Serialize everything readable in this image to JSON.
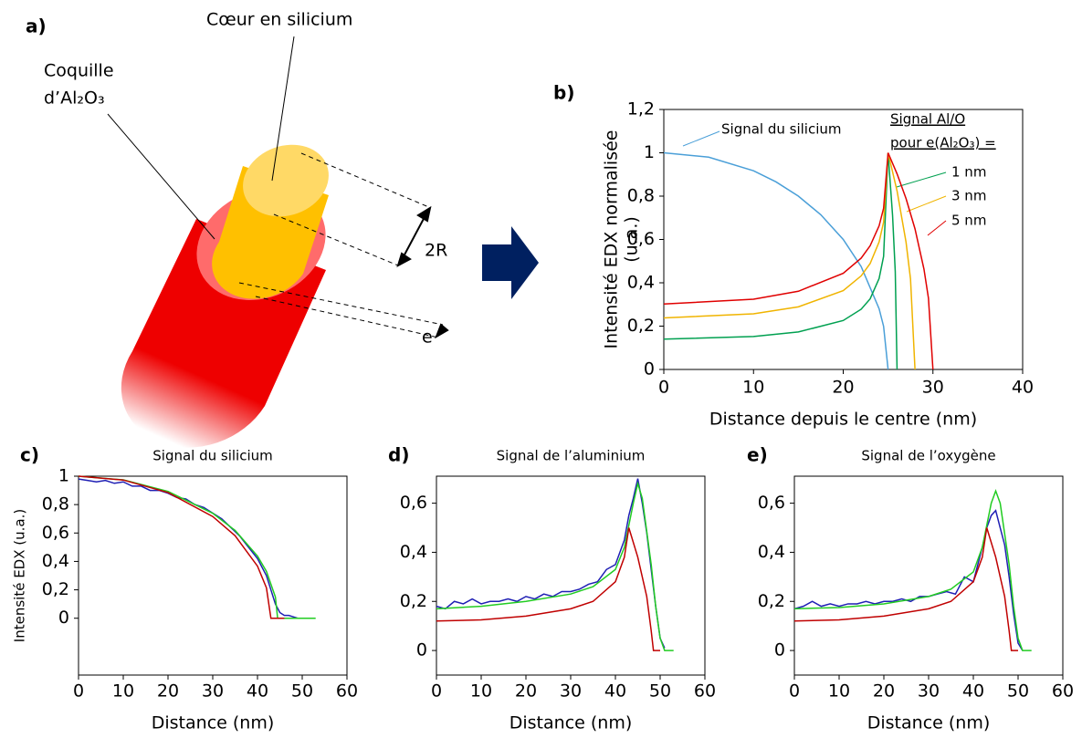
{
  "diagram": {
    "panel_label": "a)",
    "core_label": "Cœur en silicium",
    "shell_label": [
      "Coquille",
      "d’Al₂O₃"
    ],
    "diameter_label": "2R",
    "thickness_label": "e"
  },
  "chart_data": [
    {
      "type": "line",
      "panel_label": "b)",
      "xlabel": "Distance depuis le centre (nm)",
      "ylabel": [
        "Intensité EDX normalisée",
        "(u.a.)"
      ],
      "legend_title": [
        "Signal Al/O",
        "pour e(Al₂O₃) ="
      ],
      "xlim": [
        0,
        40
      ],
      "ylim": [
        0,
        1.2
      ],
      "xticks": [
        0,
        10,
        20,
        30,
        40
      ],
      "yticks": [
        0,
        {
          "value": 0.2,
          "label": "0,2"
        },
        {
          "value": 0.4,
          "label": "0,4"
        },
        {
          "value": 0.6,
          "label": "0,6"
        },
        {
          "value": 0.8,
          "label": "0,8"
        },
        1,
        {
          "value": 1.2,
          "label": "1,2"
        }
      ],
      "series": [
        {
          "name": "Signal du silicium",
          "color": "#4a9fd8",
          "x": [
            0,
            5,
            10,
            12.5,
            15,
            17.5,
            20,
            22,
            24,
            24.5,
            25
          ],
          "values": [
            1,
            0.98,
            0.917,
            0.866,
            0.8,
            0.714,
            0.6,
            0.475,
            0.28,
            0.199,
            0
          ]
        },
        {
          "name": "1 nm",
          "color": "#00a050",
          "x": [
            0,
            10,
            15,
            20,
            22,
            23,
            24,
            24.5,
            25,
            25.5,
            25.8,
            26
          ],
          "values": [
            0.14,
            0.152,
            0.173,
            0.226,
            0.278,
            0.326,
            0.42,
            0.522,
            1,
            0.711,
            0.451,
            0
          ]
        },
        {
          "name": "3 nm",
          "color": "#f0b400",
          "x": [
            0,
            10,
            15,
            20,
            22,
            23,
            24,
            24.5,
            25,
            26,
            27,
            27.5,
            28
          ],
          "values": [
            0.238,
            0.257,
            0.289,
            0.364,
            0.432,
            0.489,
            0.589,
            0.68,
            1,
            0.824,
            0.588,
            0.418,
            0
          ]
        },
        {
          "name": "5 nm",
          "color": "#e00000",
          "x": [
            0,
            10,
            15,
            20,
            22,
            23,
            24,
            24.5,
            25,
            26,
            27,
            28,
            29,
            29.5,
            30
          ],
          "values": [
            0.302,
            0.324,
            0.361,
            0.444,
            0.514,
            0.571,
            0.663,
            0.744,
            1,
            0.903,
            0.789,
            0.649,
            0.463,
            0.329,
            0
          ]
        }
      ]
    },
    {
      "type": "line",
      "panel_label": "c)",
      "title": "Signal du silicium",
      "xlabel": "Distance (nm)",
      "ylabel": "Intensité EDX (u.a.)",
      "xlim": [
        0,
        60
      ],
      "ylim": [
        -0.4,
        1
      ],
      "xticks": [
        0,
        10,
        20,
        30,
        40,
        50,
        60
      ],
      "yticks": [
        0,
        {
          "value": 0.2,
          "label": "0,2"
        },
        {
          "value": 0.4,
          "label": "0,4"
        },
        {
          "value": 0.6,
          "label": "0,6"
        },
        {
          "value": 0.8,
          "label": "0,8"
        },
        1
      ],
      "series": [
        {
          "color": "#1f1fb4",
          "x": [
            0,
            2,
            4,
            6,
            8,
            10,
            12,
            14,
            16,
            18,
            20,
            22,
            24,
            26,
            28,
            30,
            32,
            34,
            36,
            38,
            40,
            42,
            43,
            44,
            45,
            46,
            47,
            48,
            49
          ],
          "values": [
            0.98,
            0.97,
            0.96,
            0.97,
            0.95,
            0.96,
            0.93,
            0.93,
            0.9,
            0.9,
            0.88,
            0.85,
            0.84,
            0.8,
            0.78,
            0.74,
            0.7,
            0.64,
            0.58,
            0.5,
            0.42,
            0.3,
            0.2,
            0.1,
            0.04,
            0.02,
            0.02,
            0.01,
            0
          ]
        },
        {
          "color": "#22cc22",
          "x": [
            0,
            10,
            20,
            30,
            35,
            40,
            42,
            44,
            44.5,
            53
          ],
          "values": [
            1,
            0.974,
            0.893,
            0.739,
            0.618,
            0.438,
            0.33,
            0.15,
            0,
            0
          ]
        },
        {
          "color": "#c00000",
          "x": [
            0,
            10,
            20,
            30,
            35,
            40,
            42,
            43,
            46
          ],
          "values": [
            1,
            0.973,
            0.885,
            0.716,
            0.581,
            0.367,
            0.214,
            0,
            0
          ]
        }
      ]
    },
    {
      "type": "line",
      "panel_label": "d)",
      "title": "Signal de l’aluminium",
      "xlabel": "Distance (nm)",
      "xlim": [
        0,
        60
      ],
      "ylim": [
        -0.1,
        0.71
      ],
      "xticks": [
        0,
        10,
        20,
        30,
        40,
        50,
        60
      ],
      "yticks": [
        0,
        {
          "value": 0.2,
          "label": "0,2"
        },
        {
          "value": 0.4,
          "label": "0,4"
        },
        {
          "value": 0.6,
          "label": "0,6"
        }
      ],
      "series": [
        {
          "color": "#1f1fb4",
          "x": [
            0,
            2,
            4,
            6,
            8,
            10,
            12,
            14,
            16,
            18,
            20,
            22,
            24,
            26,
            28,
            30,
            32,
            34,
            36,
            38,
            40,
            42,
            43,
            44,
            45,
            46,
            47,
            48,
            49,
            50,
            51
          ],
          "values": [
            0.18,
            0.17,
            0.2,
            0.19,
            0.21,
            0.19,
            0.2,
            0.2,
            0.21,
            0.2,
            0.22,
            0.21,
            0.23,
            0.22,
            0.24,
            0.24,
            0.25,
            0.27,
            0.28,
            0.33,
            0.35,
            0.45,
            0.55,
            0.62,
            0.7,
            0.6,
            0.48,
            0.33,
            0.18,
            0.05,
            0.01
          ]
        },
        {
          "color": "#22cc22",
          "x": [
            0,
            10,
            20,
            30,
            35,
            40,
            42,
            44,
            45,
            46,
            48,
            49,
            50,
            51,
            53
          ],
          "values": [
            0.17,
            0.18,
            0.2,
            0.23,
            0.26,
            0.33,
            0.42,
            0.6,
            0.68,
            0.62,
            0.35,
            0.18,
            0.05,
            0,
            0
          ]
        },
        {
          "color": "#c00000",
          "x": [
            0,
            10,
            20,
            30,
            35,
            40,
            42,
            43,
            45,
            47,
            48,
            48.5,
            50
          ],
          "values": [
            0.12,
            0.125,
            0.14,
            0.17,
            0.2,
            0.28,
            0.38,
            0.5,
            0.38,
            0.22,
            0.08,
            0,
            0
          ]
        }
      ]
    },
    {
      "type": "line",
      "panel_label": "e)",
      "title": "Signal de l’oxygène",
      "xlabel": "Distance (nm)",
      "xlim": [
        0,
        60
      ],
      "ylim": [
        -0.1,
        0.71
      ],
      "xticks": [
        0,
        10,
        20,
        30,
        40,
        50,
        60
      ],
      "yticks": [
        0,
        {
          "value": 0.2,
          "label": "0,2"
        },
        {
          "value": 0.4,
          "label": "0,4"
        },
        {
          "value": 0.6,
          "label": "0,6"
        }
      ],
      "series": [
        {
          "color": "#1f1fb4",
          "x": [
            0,
            2,
            4,
            6,
            8,
            10,
            12,
            14,
            16,
            18,
            20,
            22,
            24,
            26,
            28,
            30,
            32,
            34,
            36,
            38,
            40,
            42,
            43,
            44,
            45,
            46,
            47,
            48,
            49,
            50,
            51
          ],
          "values": [
            0.17,
            0.18,
            0.2,
            0.18,
            0.19,
            0.18,
            0.19,
            0.19,
            0.2,
            0.19,
            0.2,
            0.2,
            0.21,
            0.2,
            0.22,
            0.22,
            0.23,
            0.24,
            0.23,
            0.3,
            0.28,
            0.42,
            0.5,
            0.55,
            0.57,
            0.5,
            0.43,
            0.3,
            0.15,
            0.03,
            0
          ]
        },
        {
          "color": "#22cc22",
          "x": [
            0,
            10,
            20,
            30,
            35,
            40,
            42,
            44,
            45,
            46,
            48,
            49,
            50,
            51,
            53
          ],
          "values": [
            0.17,
            0.175,
            0.19,
            0.22,
            0.25,
            0.32,
            0.42,
            0.6,
            0.65,
            0.6,
            0.35,
            0.18,
            0.05,
            0,
            0
          ]
        },
        {
          "color": "#c00000",
          "x": [
            0,
            10,
            20,
            30,
            35,
            40,
            42,
            43,
            45,
            47,
            48,
            48.5,
            50
          ],
          "values": [
            0.12,
            0.125,
            0.14,
            0.17,
            0.2,
            0.28,
            0.38,
            0.5,
            0.38,
            0.22,
            0.08,
            0,
            0
          ]
        }
      ]
    }
  ]
}
